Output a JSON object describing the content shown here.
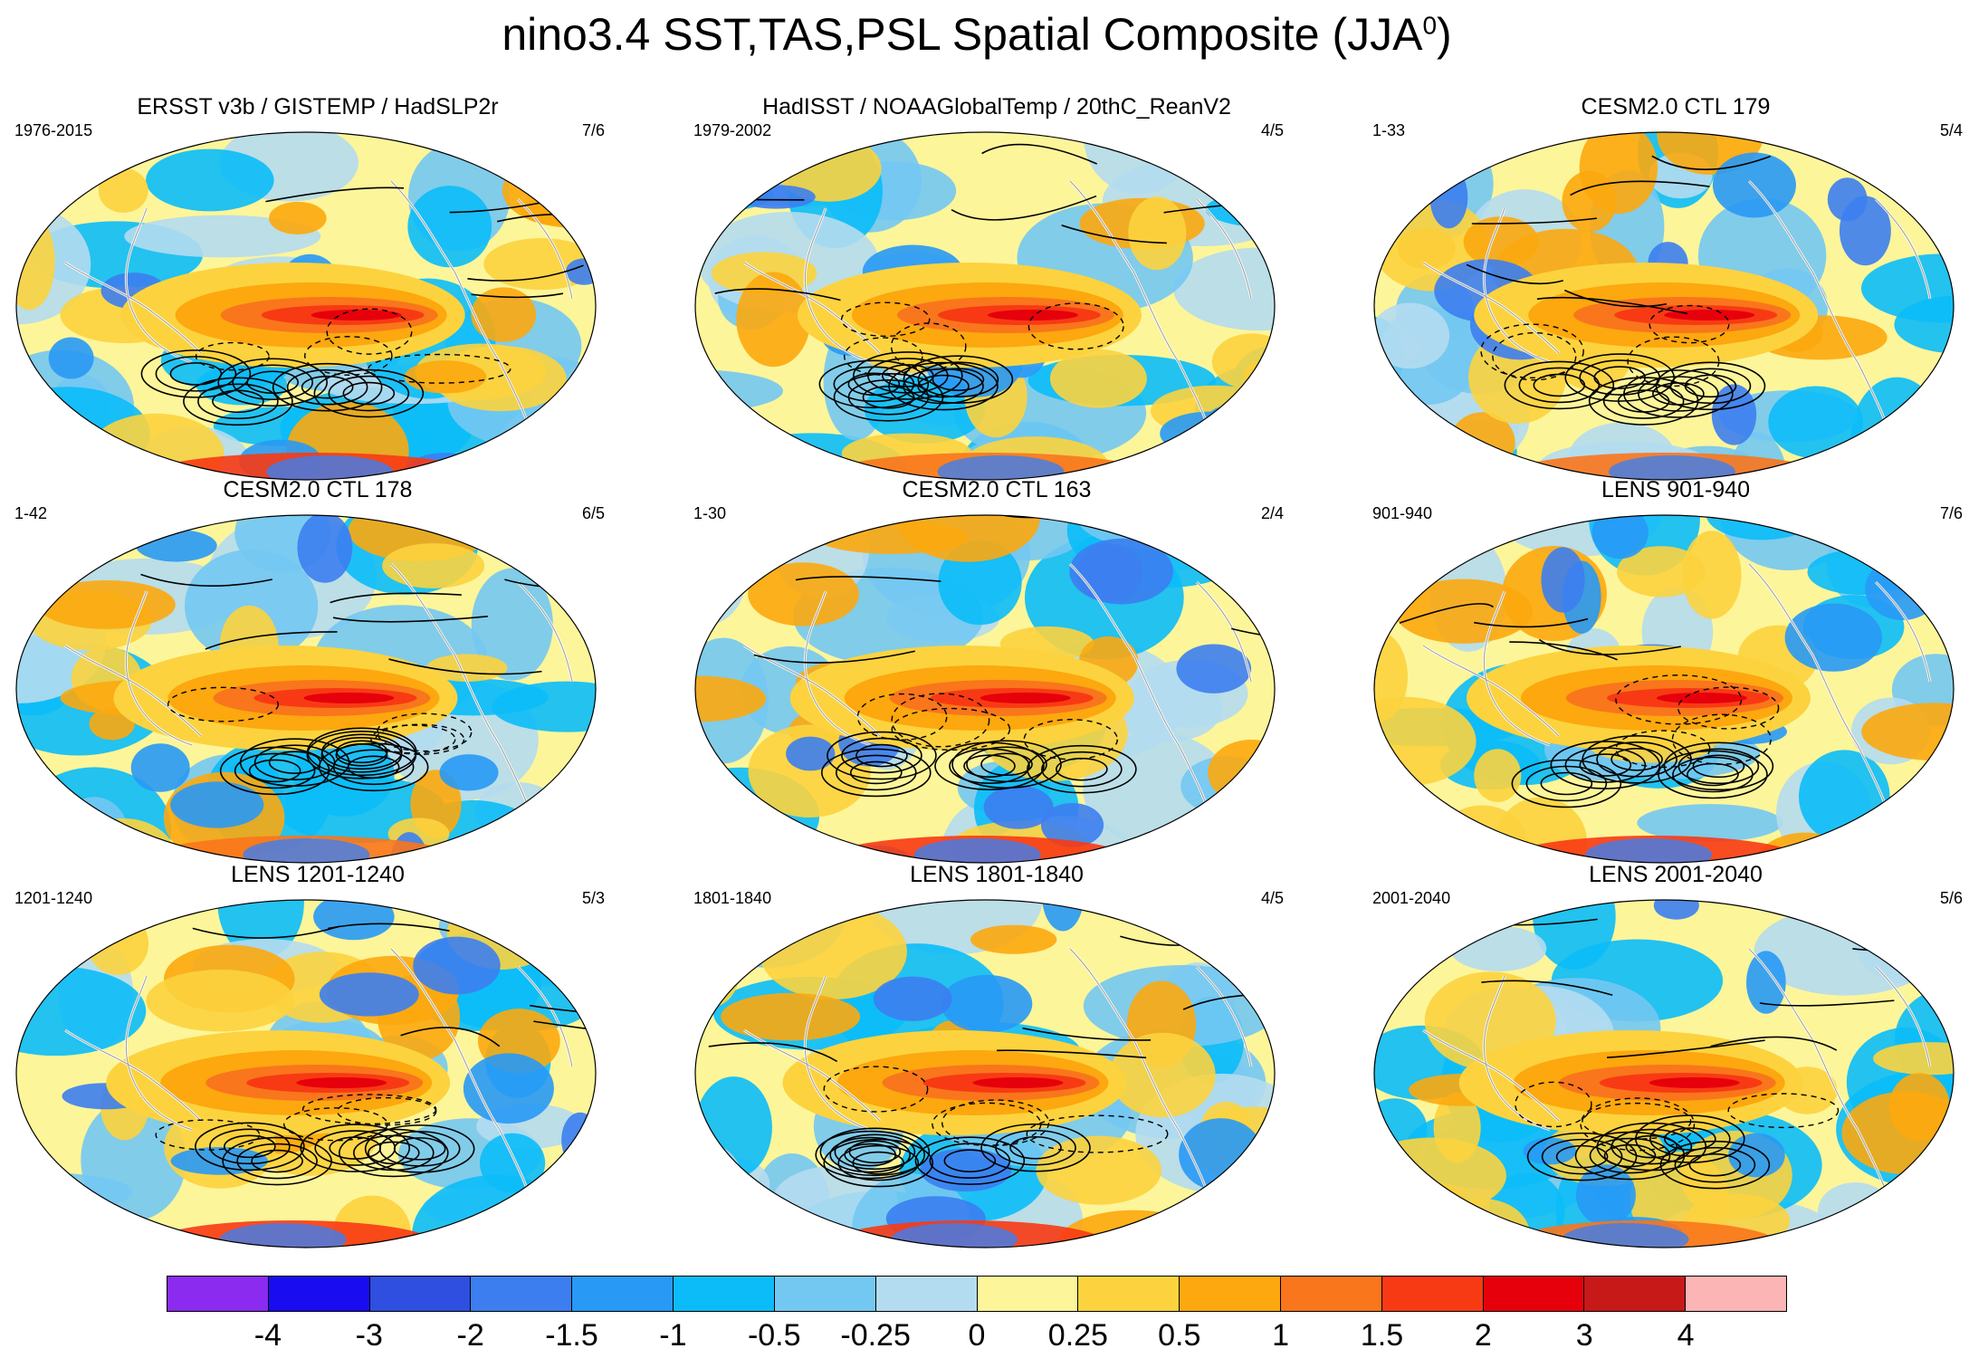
{
  "title": {
    "main": "nino3.4 SST,TAS,PSL Spatial Composite (JJA",
    "superscript": "0",
    "close": ")"
  },
  "panels": [
    {
      "title": "ERSST v3b / GISTEMP / HadSLP2r",
      "left": "1976-2015",
      "right": "7/6"
    },
    {
      "title": "HadISST / NOAAGlobalTemp / 20thC_ReanV2",
      "left": "1979-2002",
      "right": "4/5"
    },
    {
      "title": "CESM2.0 CTL 179",
      "left": "1-33",
      "right": "5/4"
    },
    {
      "title": "CESM2.0 CTL 178",
      "left": "1-42",
      "right": "6/5"
    },
    {
      "title": "CESM2.0 CTL 163",
      "left": "1-30",
      "right": "2/4"
    },
    {
      "title": "LENS 901-940",
      "left": "901-940",
      "right": "7/6"
    },
    {
      "title": "LENS 1201-1240",
      "left": "1201-1240",
      "right": "5/3"
    },
    {
      "title": "LENS 1801-1840",
      "left": "1801-1840",
      "right": "4/5"
    },
    {
      "title": "LENS 2001-2040",
      "left": "2001-2040",
      "right": "5/6"
    }
  ],
  "colorbar": {
    "colors": [
      "#8b2bf0",
      "#1a0cf0",
      "#2e4fe0",
      "#3c7ef0",
      "#2899f5",
      "#0bbcf8",
      "#73c8f2",
      "#b4dcf0",
      "#fdf59a",
      "#fcd33e",
      "#fca80e",
      "#f9761c",
      "#f83a14",
      "#e6000b",
      "#c81919",
      "#fcb5b5"
    ],
    "labels": [
      "-4",
      "-3",
      "-2",
      "-1.5",
      "-1",
      "-0.5",
      "-0.25",
      "0",
      "0.25",
      "0.5",
      "1",
      "1.5",
      "2",
      "3",
      "4"
    ]
  }
}
